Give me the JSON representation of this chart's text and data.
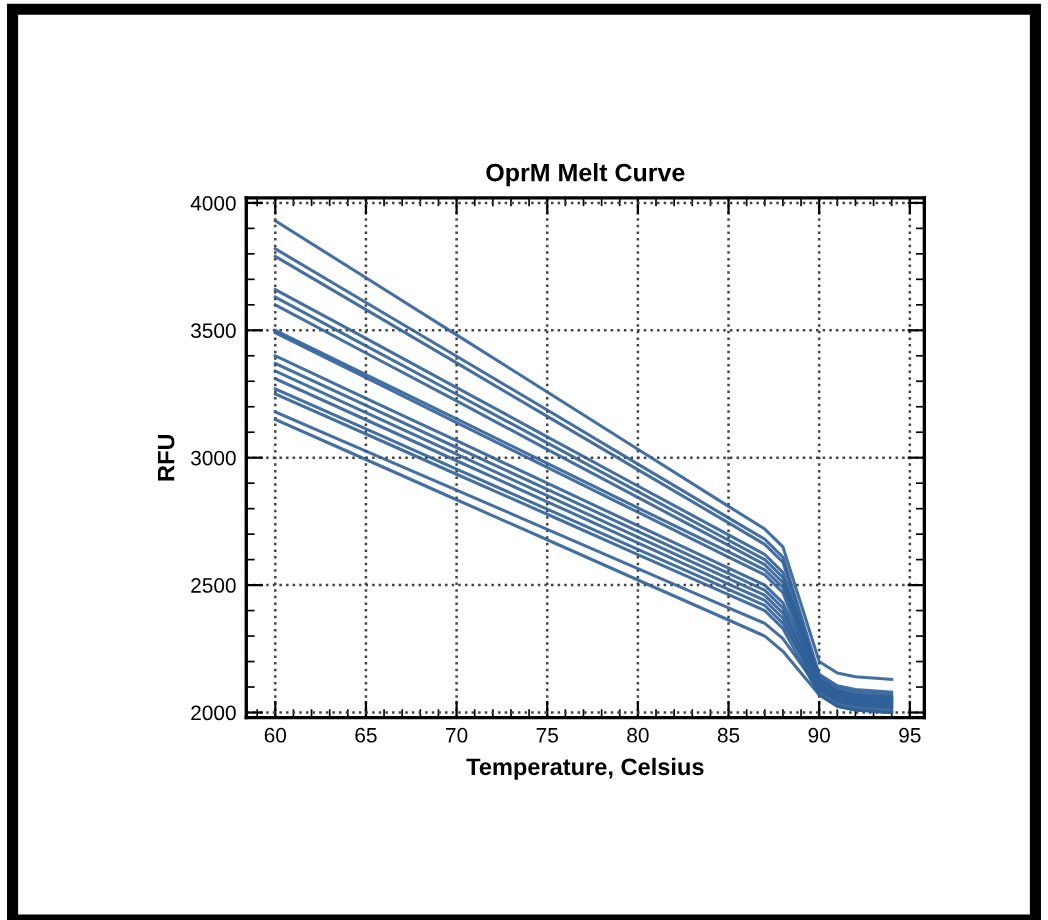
{
  "chart_data": {
    "type": "line",
    "title": "OprM Melt Curve",
    "xlabel": "Temperature, Celsius",
    "ylabel": "RFU",
    "x": [
      60,
      65,
      70,
      75,
      80,
      85,
      87,
      88,
      89,
      90,
      91,
      92,
      94
    ],
    "series": [
      {
        "color": "#2f5f98",
        "values": [
          3930,
          3706,
          3482,
          3258,
          3033,
          2809,
          2720,
          2650,
          2425,
          2200,
          2155,
          2140,
          2130
        ]
      },
      {
        "color": "#2f5f98",
        "values": [
          3820,
          3609,
          3398,
          3187,
          2975,
          2764,
          2680,
          2610,
          2380,
          2150,
          2105,
          2090,
          2080
        ]
      },
      {
        "color": "#2f5f98",
        "values": [
          3790,
          3581,
          3372,
          3162,
          2953,
          2744,
          2660,
          2590,
          2360,
          2130,
          2085,
          2070,
          2060
        ]
      },
      {
        "color": "#2f5f98",
        "values": [
          3660,
          3468,
          3275,
          3082,
          2889,
          2697,
          2620,
          2550,
          2335,
          2120,
          2075,
          2060,
          2050
        ]
      },
      {
        "color": "#2f5f98",
        "values": [
          3630,
          3439,
          3249,
          3058,
          2867,
          2676,
          2600,
          2530,
          2335,
          2140,
          2095,
          2080,
          2070
        ]
      },
      {
        "color": "#2f5f98",
        "values": [
          3600,
          3411,
          3223,
          3033,
          2844,
          2656,
          2580,
          2510,
          2310,
          2110,
          2065,
          2050,
          2040
        ]
      },
      {
        "color": "#2f5f98",
        "values": [
          3500,
          3326,
          3152,
          2978,
          2803,
          2630,
          2560,
          2490,
          2310,
          2130,
          2085,
          2070,
          2060
        ]
      },
      {
        "color": "#2f5f98",
        "values": [
          3490,
          3314,
          3138,
          2962,
          2786,
          2610,
          2540,
          2470,
          2285,
          2100,
          2055,
          2040,
          2030
        ]
      },
      {
        "color": "#2f5f98",
        "values": [
          3400,
          3233,
          3067,
          2900,
          2733,
          2567,
          2500,
          2430,
          2275,
          2120,
          2075,
          2060,
          2050
        ]
      },
      {
        "color": "#2f5f98",
        "values": [
          3370,
          3205,
          3040,
          2876,
          2711,
          2546,
          2480,
          2410,
          2250,
          2090,
          2045,
          2030,
          2020
        ]
      },
      {
        "color": "#2f5f98",
        "values": [
          3340,
          3177,
          3014,
          2851,
          2688,
          2525,
          2460,
          2390,
          2250,
          2110,
          2065,
          2050,
          2040
        ]
      },
      {
        "color": "#2f5f98",
        "values": [
          3310,
          3149,
          2988,
          2827,
          2666,
          2504,
          2440,
          2370,
          2225,
          2080,
          2035,
          2020,
          2010
        ]
      },
      {
        "color": "#2f5f98",
        "values": [
          3270,
          3113,
          2955,
          2798,
          2640,
          2483,
          2420,
          2350,
          2225,
          2100,
          2055,
          2040,
          2030
        ]
      },
      {
        "color": "#2f5f98",
        "values": [
          3250,
          3093,
          2935,
          2778,
          2620,
          2463,
          2400,
          2330,
          2200,
          2070,
          2025,
          2010,
          2000
        ]
      },
      {
        "color": "#2f5f98",
        "values": [
          3180,
          3026,
          2873,
          2719,
          2565,
          2411,
          2350,
          2290,
          2190,
          2090,
          2045,
          2030,
          2020
        ]
      },
      {
        "color": "#2f5f98",
        "values": [
          3150,
          2993,
          2835,
          2678,
          2520,
          2363,
          2300,
          2240,
          2155,
          2070,
          2025,
          2010,
          2000
        ]
      }
    ],
    "xlim": [
      58.4,
      95.8
    ],
    "ylim": [
      1980,
      4020
    ],
    "xticks": [
      60,
      65,
      70,
      75,
      80,
      85,
      90,
      95
    ],
    "yticks": [
      2000,
      2500,
      3000,
      3500,
      4000
    ],
    "grid": true,
    "marker": "none",
    "line_style": "solid"
  }
}
